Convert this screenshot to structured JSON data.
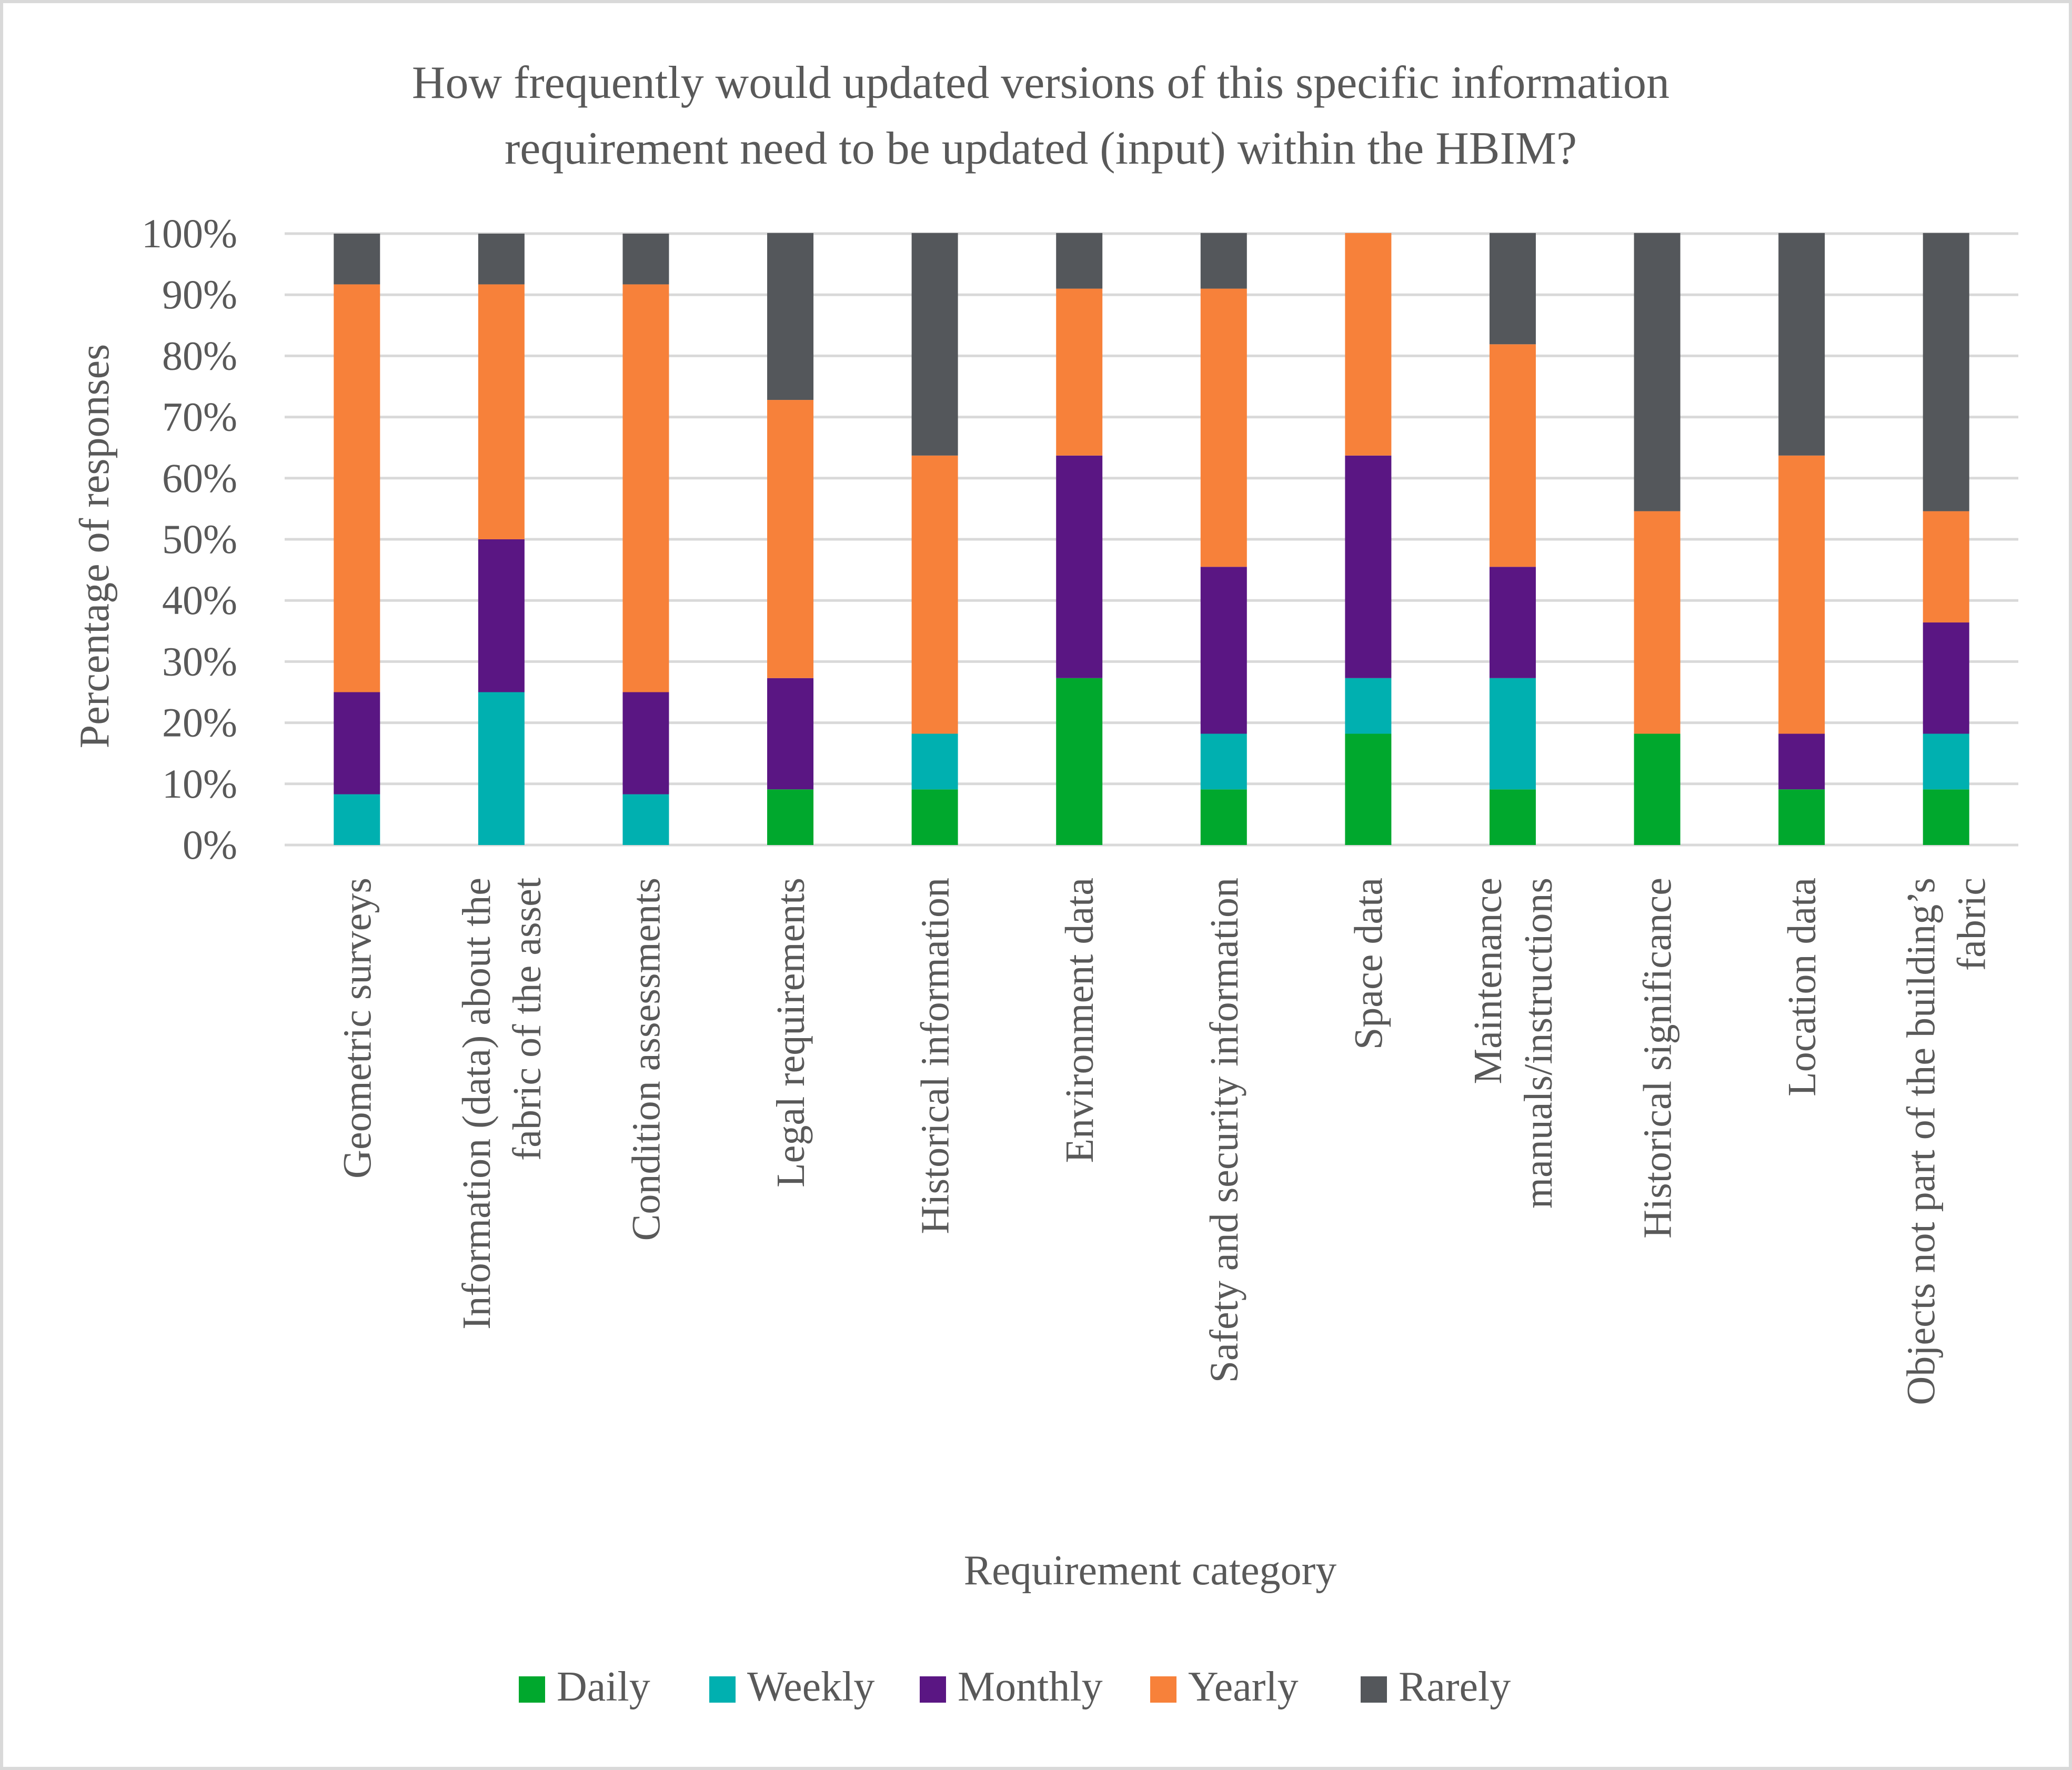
{
  "chart_data": {
    "type": "bar",
    "stacked": true,
    "title": "How frequently would updated versions of this specific information requirement need to be updated (input) within the HBIM?",
    "title_lines": [
      "How frequently would updated versions of this specific information",
      "requirement need to be updated (input) within the HBIM?"
    ],
    "xlabel": "Requirement category",
    "ylabel": "Percentage of responses",
    "ylim": [
      0,
      100
    ],
    "yticks": [
      "0%",
      "10%",
      "20%",
      "30%",
      "40%",
      "50%",
      "60%",
      "70%",
      "80%",
      "90%",
      "100%"
    ],
    "grid": true,
    "legend_position": "bottom",
    "categories": [
      "Geometric surveys",
      "Information (data) about the fabric of the asset",
      "Condition assessments",
      "Legal requirements",
      "Historical information",
      "Environment data",
      "Safety and security information",
      "Space data",
      "Maintenance manuals/instructions",
      "Historical significance",
      "Location data",
      "Objects not part of the building’s fabric"
    ],
    "category_lines": [
      [
        "Geometric surveys"
      ],
      [
        "Information (data) about the",
        "fabric of the asset"
      ],
      [
        "Condition assessments"
      ],
      [
        "Legal requirements"
      ],
      [
        "Historical information"
      ],
      [
        "Environment data"
      ],
      [
        "Safety and security information"
      ],
      [
        "Space data"
      ],
      [
        "Maintenance",
        "manuals/instructions"
      ],
      [
        "Historical significance"
      ],
      [
        "Location data"
      ],
      [
        "Objects not part of the building’s",
        "fabric"
      ]
    ],
    "series": [
      {
        "name": "Daily",
        "color": "#00a82d",
        "values": [
          0,
          0,
          0,
          9.1,
          9.1,
          27.3,
          9.1,
          18.2,
          9.1,
          18.2,
          9.1,
          9.1
        ]
      },
      {
        "name": "Weekly",
        "color": "#00b0b0",
        "values": [
          8.3,
          25,
          8.3,
          0,
          9.1,
          0,
          9.1,
          9.1,
          18.2,
          0,
          0,
          9.1
        ]
      },
      {
        "name": "Monthly",
        "color": "#5a1683",
        "values": [
          16.7,
          25,
          16.7,
          18.2,
          0,
          36.4,
          27.3,
          36.4,
          18.2,
          0,
          9.1,
          18.2
        ]
      },
      {
        "name": "Yearly",
        "color": "#f7813a",
        "values": [
          66.7,
          41.7,
          66.7,
          45.5,
          45.5,
          27.3,
          45.5,
          36.4,
          36.4,
          36.4,
          45.5,
          18.2
        ]
      },
      {
        "name": "Rarely",
        "color": "#54575b",
        "values": [
          8.3,
          8.3,
          8.3,
          27.3,
          36.4,
          9.1,
          9.1,
          0,
          18.2,
          45.5,
          36.4,
          45.5
        ]
      }
    ]
  }
}
